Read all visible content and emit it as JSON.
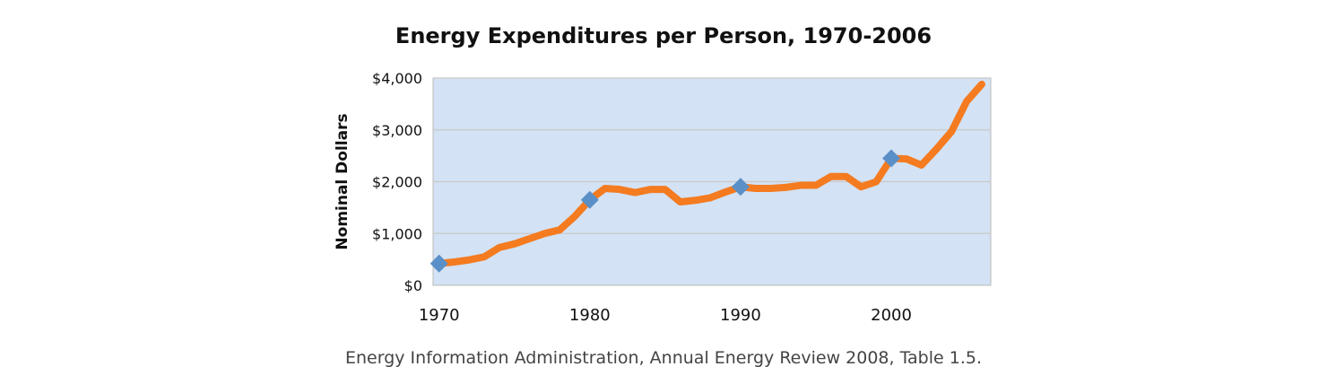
{
  "chart_data": {
    "type": "line",
    "title": "Energy Expenditures per Person, 1970-2006",
    "ylabel": "Nominal Dollars",
    "xlabel": "",
    "source": "Energy Information Administration, Annual Energy Review 2008, Table 1.5.",
    "ylim": [
      0,
      4000
    ],
    "xlim": [
      1970,
      2007
    ],
    "yticks": [
      "$0",
      "$1,000",
      "$2,000",
      "$3,000",
      "$4,000"
    ],
    "ytick_values": [
      0,
      1000,
      2000,
      3000,
      4000
    ],
    "xticks": [
      "1970",
      "1980",
      "1990",
      "2000"
    ],
    "xtick_values": [
      1970,
      1980,
      1990,
      2000
    ],
    "grid": "horizontal",
    "colors": {
      "line": "#F47B20",
      "marker": "#5B8FC7",
      "plot_bg": "#D3E2F4",
      "grid": "#C8C8C8"
    },
    "x": [
      1970,
      1971,
      1972,
      1973,
      1974,
      1975,
      1976,
      1977,
      1978,
      1979,
      1980,
      1981,
      1982,
      1983,
      1984,
      1985,
      1986,
      1987,
      1988,
      1989,
      1990,
      1991,
      1992,
      1993,
      1994,
      1995,
      1996,
      1997,
      1998,
      1999,
      2000,
      2001,
      2002,
      2003,
      2004,
      2005,
      2006
    ],
    "values": [
      420,
      450,
      490,
      550,
      730,
      800,
      900,
      1000,
      1070,
      1330,
      1650,
      1870,
      1850,
      1790,
      1850,
      1850,
      1610,
      1640,
      1690,
      1800,
      1900,
      1870,
      1870,
      1890,
      1930,
      1930,
      2100,
      2100,
      1900,
      2000,
      2450,
      2440,
      2320,
      2630,
      2970,
      3550,
      3880
    ],
    "marker_years": [
      1970,
      1980,
      1990,
      2000
    ]
  }
}
